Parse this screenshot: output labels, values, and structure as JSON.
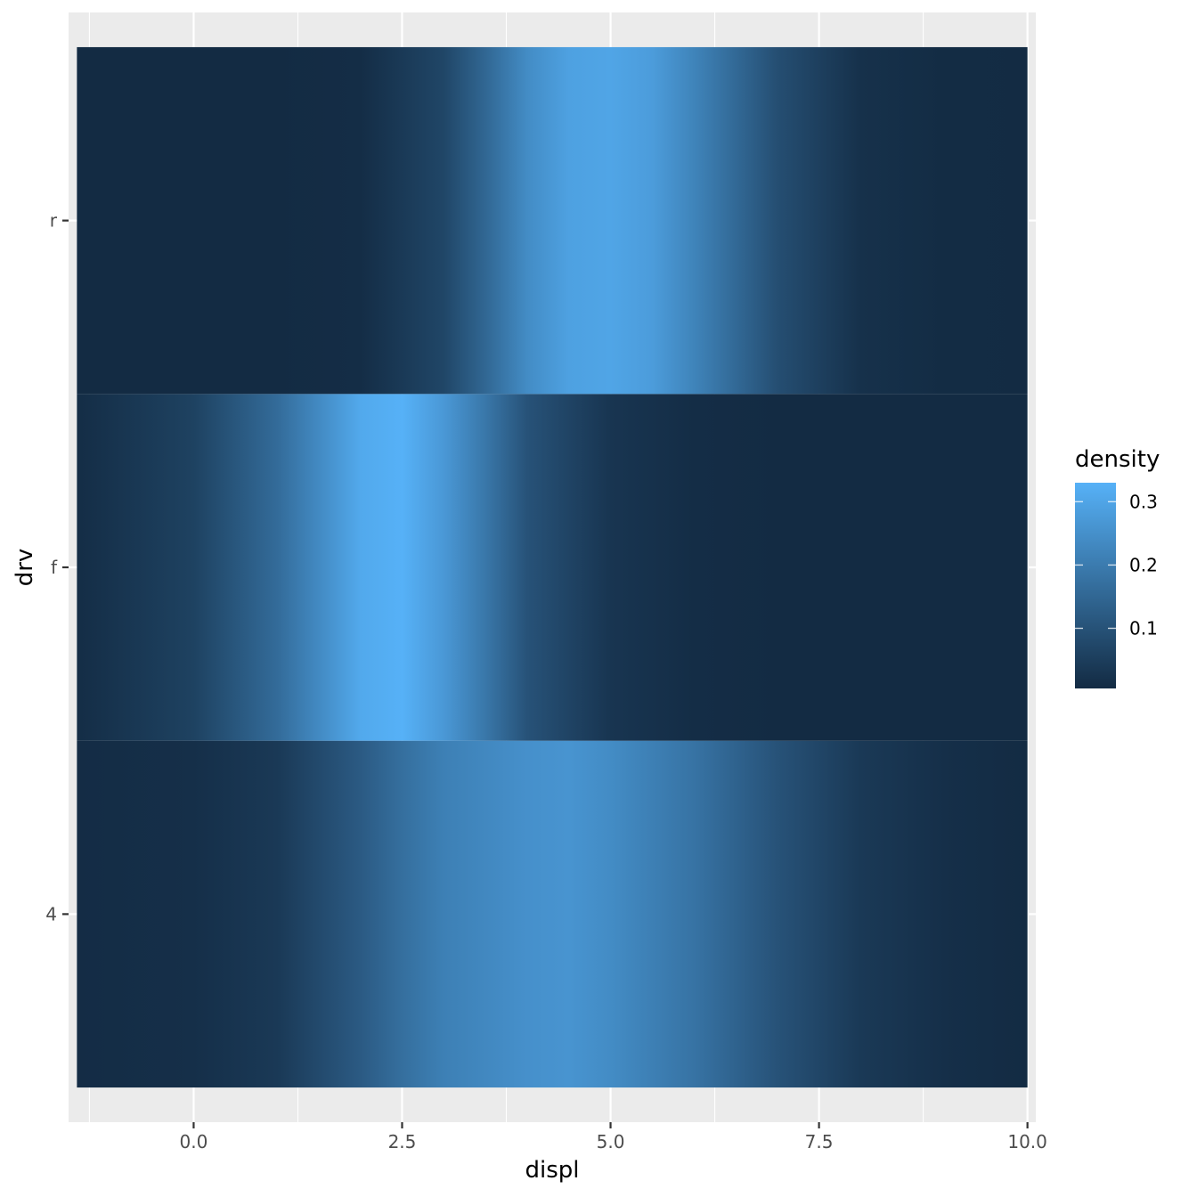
{
  "chart_data": {
    "type": "heatmap",
    "xlabel": "displ",
    "ylabel": "drv",
    "xlim": [
      -1.5,
      10.1
    ],
    "x_ticks": [
      0.0,
      2.5,
      5.0,
      7.5,
      10.0
    ],
    "x_tick_labels": [
      "0.0",
      "2.5",
      "5.0",
      "7.5",
      "10.0"
    ],
    "x_data_range": [
      -1.4,
      10.0
    ],
    "categories": [
      "4",
      "f",
      "r"
    ],
    "legend": {
      "title": "density",
      "position": "right",
      "range": [
        0.005,
        0.33
      ],
      "ticks": [
        0.1,
        0.2,
        0.3
      ],
      "tick_labels": [
        "0.1",
        "0.2",
        "0.3"
      ],
      "color_low": "#132B43",
      "color_high": "#56B1F7"
    },
    "series": [
      {
        "category": "4",
        "x": [
          -1.4,
          0.0,
          1.0,
          2.0,
          2.5,
          3.0,
          4.0,
          4.5,
          5.0,
          6.0,
          7.0,
          8.0,
          9.0,
          10.0
        ],
        "density": [
          0.008,
          0.015,
          0.04,
          0.12,
          0.17,
          0.21,
          0.25,
          0.26,
          0.24,
          0.18,
          0.1,
          0.04,
          0.015,
          0.005
        ]
      },
      {
        "category": "f",
        "x": [
          -1.4,
          0.0,
          1.0,
          2.0,
          2.5,
          3.0,
          3.5,
          4.0,
          5.0,
          6.0,
          7.0,
          8.0,
          9.0,
          10.0
        ],
        "density": [
          0.01,
          0.06,
          0.16,
          0.31,
          0.33,
          0.27,
          0.19,
          0.1,
          0.03,
          0.01,
          0.005,
          0.005,
          0.005,
          0.005
        ]
      },
      {
        "category": "r",
        "x": [
          -1.4,
          0.0,
          1.0,
          2.0,
          3.0,
          3.5,
          4.0,
          4.5,
          5.0,
          5.5,
          6.0,
          7.0,
          8.0,
          9.0,
          10.0
        ],
        "density": [
          0.005,
          0.005,
          0.005,
          0.01,
          0.07,
          0.15,
          0.24,
          0.29,
          0.3,
          0.28,
          0.22,
          0.09,
          0.02,
          0.007,
          0.005
        ]
      }
    ]
  }
}
